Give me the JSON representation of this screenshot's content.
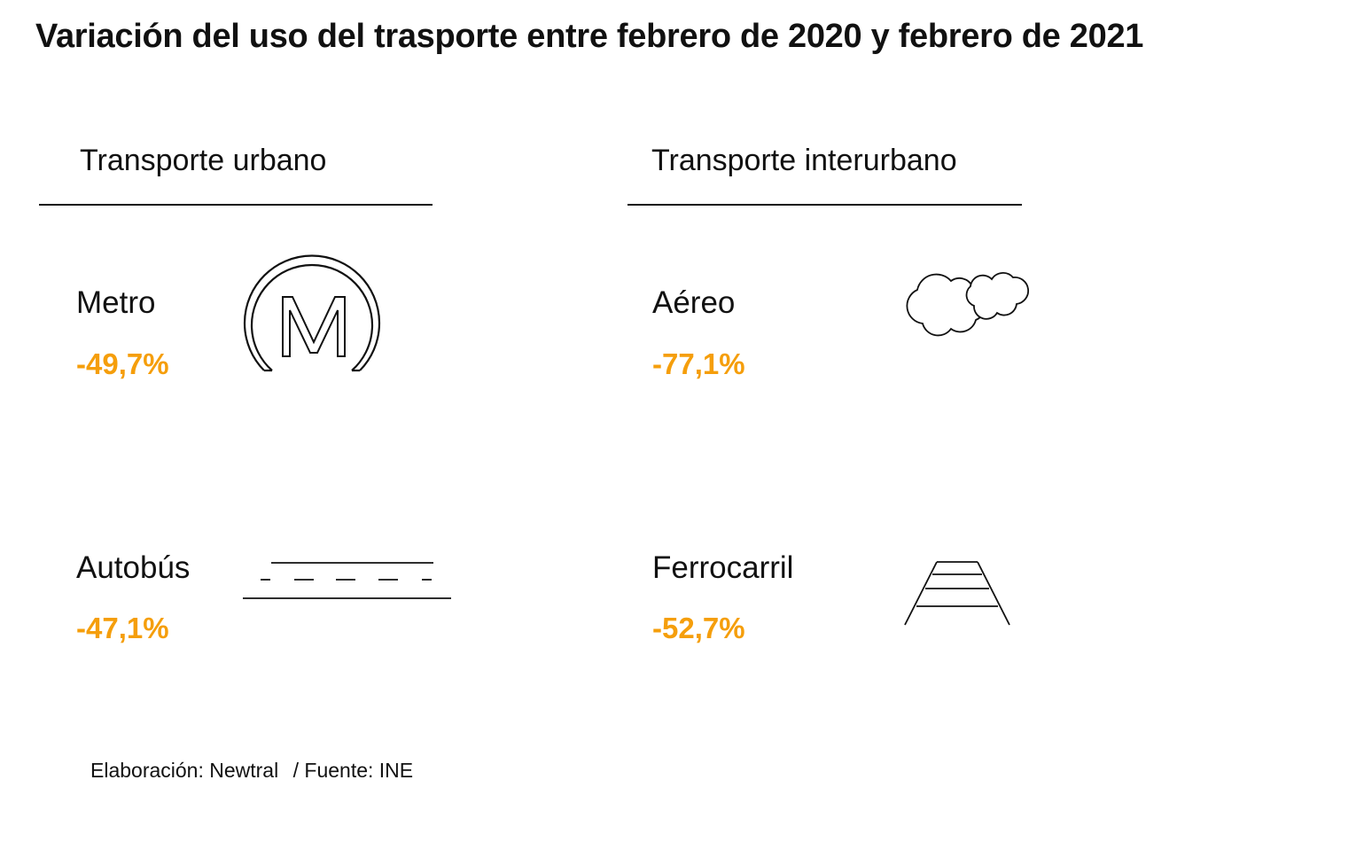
{
  "title": "Variación del uso del trasporte entre febrero de 2020 y febrero de 2021",
  "sections": {
    "urban": {
      "title": "Transporte urbano",
      "items": [
        {
          "label": "Metro",
          "value": "-49,7%",
          "icon": "metro-icon"
        },
        {
          "label": "Autobús",
          "value": "-47,1%",
          "icon": "road-icon"
        }
      ]
    },
    "interurban": {
      "title": "Transporte interurbano",
      "items": [
        {
          "label": "Aéreo",
          "value": "-77,1%",
          "icon": "clouds-icon"
        },
        {
          "label": "Ferrocarril",
          "value": "-52,7%",
          "icon": "railway-icon"
        }
      ]
    }
  },
  "colors": {
    "value": "#f59e0b",
    "text": "#111111"
  },
  "footer": {
    "credit": "Elaboración: Newtral",
    "separator": "/",
    "source": "Fuente: INE"
  }
}
